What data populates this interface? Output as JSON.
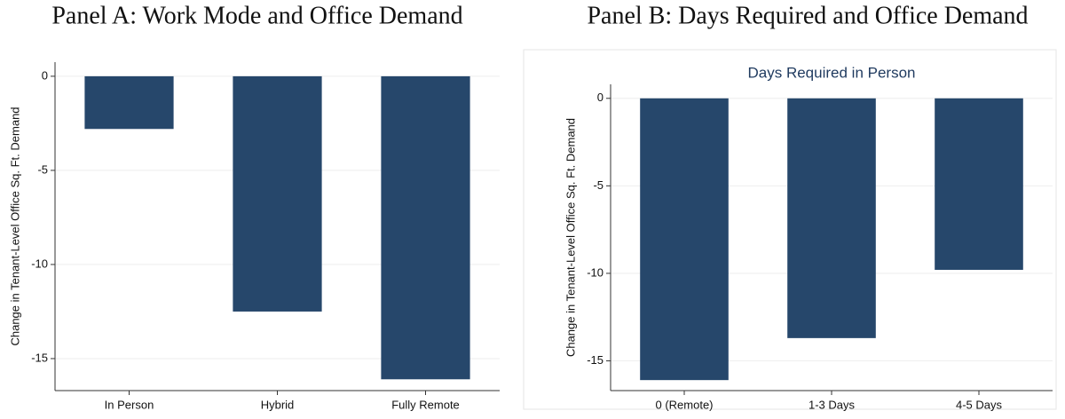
{
  "chart_data": [
    {
      "type": "bar",
      "panel": "Panel A: Work Mode and Office Demand",
      "y_label": "Change in Tenant-Level Office Sq. Ft. Demand",
      "categories": [
        "In Person",
        "Hybrid",
        "Fully Remote"
      ],
      "values": [
        -2.8,
        -12.5,
        -16.1
      ],
      "color": "#26476b",
      "ylim": [
        -16.7,
        0.75
      ],
      "yticks": [
        0,
        -5,
        -10,
        -15
      ],
      "grid": true
    },
    {
      "type": "bar",
      "panel": "Panel B: Days Required and Office Demand",
      "title": "Days Required in Person",
      "y_label": "Change in Tenant-Level Office Sq. Ft. Demand",
      "categories": [
        "0 (Remote)",
        "1-3 Days",
        "4-5 Days"
      ],
      "values": [
        -16.1,
        -13.7,
        -9.8
      ],
      "color": "#26476b",
      "ylim": [
        -16.7,
        0.8
      ],
      "yticks": [
        0,
        -5,
        -10,
        -15
      ],
      "grid": true
    }
  ]
}
